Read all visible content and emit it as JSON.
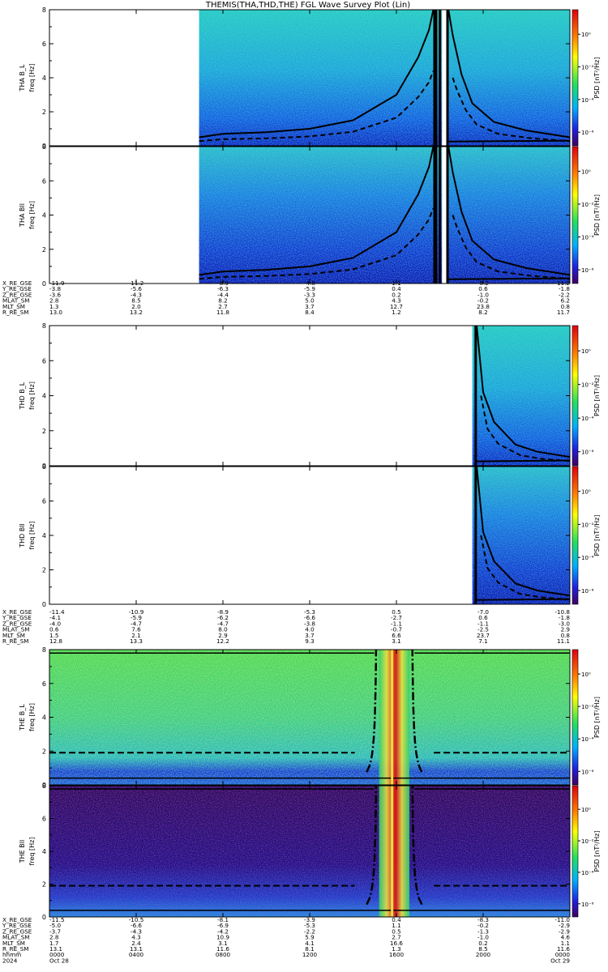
{
  "title": "THEMIS(THA,THD,THE) FGL Wave Survey Plot (Lin)",
  "chart_data": [
    {
      "type": "heatmap",
      "ylabel_probe": "THA B_L",
      "ylabel_unit": "freq [Hz]",
      "ylim": [
        0,
        8
      ],
      "yticks": [
        "0",
        "2",
        "4",
        "6",
        "8"
      ],
      "colorbar": {
        "label": "PSD [nT²/Hz]",
        "ticks": [
          "10⁰",
          "10⁻²",
          "10⁻⁴",
          "10⁻⁶"
        ]
      },
      "data_extent_hours": [
        [
          6.9,
          18.1
        ],
        [
          18.3,
          24
        ]
      ],
      "background": "ocean",
      "f_ci_curve": [
        [
          6.9,
          0.5
        ],
        [
          8,
          0.7
        ],
        [
          10,
          0.8
        ],
        [
          12,
          1.0
        ],
        [
          14,
          1.5
        ],
        [
          16,
          3.0
        ],
        [
          17,
          5.2
        ],
        [
          17.5,
          6.8
        ],
        [
          17.7,
          8
        ]
      ],
      "f_cutoff": [
        [
          18.4,
          8
        ],
        [
          18.6,
          6.5
        ],
        [
          19,
          4.2
        ],
        [
          19.5,
          2.5
        ],
        [
          20.5,
          1.4
        ],
        [
          22,
          0.9
        ],
        [
          24,
          0.5
        ]
      ]
    },
    {
      "type": "heatmap",
      "ylabel_probe": "THA Bll",
      "ylabel_unit": "freq [Hz]",
      "ylim": [
        0,
        8
      ],
      "yticks": [
        "0",
        "2",
        "4",
        "6",
        "8"
      ],
      "colorbar": {
        "label": "PSD [nT²/Hz]",
        "ticks": [
          "10⁰",
          "10⁻²",
          "10⁻⁴",
          "10⁻⁶"
        ]
      },
      "data_extent_hours": [
        [
          6.9,
          18.1
        ],
        [
          18.3,
          24
        ]
      ],
      "background": "deep",
      "f_ci_curve": [
        [
          6.9,
          0.5
        ],
        [
          8,
          0.7
        ],
        [
          10,
          0.8
        ],
        [
          12,
          1.0
        ],
        [
          14,
          1.5
        ],
        [
          16,
          3.0
        ],
        [
          17,
          5.2
        ],
        [
          17.5,
          6.8
        ],
        [
          17.7,
          8
        ]
      ],
      "f_cutoff": [
        [
          18.4,
          8
        ],
        [
          18.6,
          6.5
        ],
        [
          19,
          4.2
        ],
        [
          19.5,
          2.5
        ],
        [
          20.5,
          1.4
        ],
        [
          22,
          0.9
        ],
        [
          24,
          0.5
        ]
      ]
    },
    {
      "type": "heatmap",
      "ylabel_probe": "THD B_L",
      "ylabel_unit": "freq [Hz]",
      "ylim": [
        0,
        8
      ],
      "yticks": [
        "0",
        "2",
        "4",
        "6",
        "8"
      ],
      "colorbar": {
        "label": "PSD [nT²/Hz]",
        "ticks": [
          "10⁰",
          "10⁻²",
          "10⁻⁴",
          "10⁻⁶"
        ]
      },
      "data_extent_hours": [
        [
          19.5,
          24
        ]
      ],
      "background": "ocean",
      "f_cutoff": [
        [
          19.7,
          8
        ],
        [
          20,
          4.2
        ],
        [
          20.5,
          2.5
        ],
        [
          21.5,
          1.2
        ],
        [
          22.5,
          0.8
        ],
        [
          24,
          0.5
        ]
      ]
    },
    {
      "type": "heatmap",
      "ylabel_probe": "THD Bll",
      "ylabel_unit": "freq [Hz]",
      "ylim": [
        0,
        8
      ],
      "yticks": [
        "0",
        "2",
        "4",
        "6",
        "8"
      ],
      "colorbar": {
        "label": "PSD [nT²/Hz]",
        "ticks": [
          "10⁰",
          "10⁻²",
          "10⁻⁴",
          "10⁻⁶"
        ]
      },
      "data_extent_hours": [
        [
          19.5,
          24
        ]
      ],
      "background": "deep",
      "f_cutoff": [
        [
          19.7,
          8
        ],
        [
          20,
          4.2
        ],
        [
          20.5,
          2.5
        ],
        [
          21.5,
          1.2
        ],
        [
          22.5,
          0.8
        ],
        [
          24,
          0.5
        ]
      ]
    },
    {
      "type": "heatmap",
      "ylabel_probe": "THE B_L",
      "ylabel_unit": "freq [Hz]",
      "ylim": [
        0,
        8
      ],
      "yticks": [
        "0",
        "2",
        "4",
        "6",
        "8"
      ],
      "colorbar": {
        "label": "PSD [nT²/Hz]",
        "ticks": [
          "10⁰",
          "10⁻²",
          "10⁻⁴",
          "10⁻⁶"
        ]
      },
      "data_extent_hours": [
        [
          0,
          24
        ]
      ],
      "background": "green",
      "hot_band_hours": [
        15.2,
        16.6
      ],
      "f_top": 7.8,
      "f_dash": 1.9,
      "f_low": 0.4
    },
    {
      "type": "heatmap",
      "ylabel_probe": "THE Bll",
      "ylabel_unit": "freq [Hz]",
      "ylim": [
        0,
        8
      ],
      "yticks": [
        "0",
        "2",
        "4",
        "6",
        "8"
      ],
      "colorbar": {
        "label": "PSD [nT²/Hz]",
        "ticks": [
          "10⁰",
          "10⁻²",
          "10⁻⁴",
          "10⁻⁶"
        ]
      },
      "data_extent_hours": [
        [
          0,
          24
        ]
      ],
      "background": "dark",
      "hot_band_hours": [
        15.2,
        16.6
      ],
      "f_top": 7.8,
      "f_dash": 1.9,
      "f_low": 0.4
    }
  ],
  "ephem_tables": [
    {
      "labels": [
        "X_RE_GSE",
        "Y_RE_GSE",
        "Z_RE_GSE",
        "MLAT_SM",
        "MLT_SM",
        "R_RE_SM"
      ],
      "cols": [
        [
          "-11.9",
          "-3.8",
          "-3.6",
          "2.8",
          "1.3",
          "13.0"
        ],
        [
          "-11.2",
          "-5.6",
          "-4.3",
          "8.5",
          "2.0",
          "13.2"
        ],
        [
          "-8.9",
          "-6.3",
          "-4.4",
          "8.2",
          "2.7",
          "11.8"
        ],
        [
          "-4.8",
          "-5.9",
          "-3.3",
          "5.0",
          "3.7",
          "8.4"
        ],
        [
          "1.1",
          "0.4",
          "0.2",
          "4.3",
          "12.7",
          "1.2"
        ],
        [
          "-8.2",
          "0.6",
          "-1.0",
          "-0.2",
          "23.8",
          "8.2"
        ],
        [
          "-11.2",
          "-1.8",
          "-2.2",
          "6.2",
          "0.8",
          "11.7"
        ]
      ]
    },
    {
      "labels": [
        "X_RE_GSE",
        "Y_RE_GSE",
        "Z_RE_GSE",
        "MLAT_SM",
        "MLT_SM",
        "R_RE_SM"
      ],
      "cols": [
        [
          "-11.4",
          "-4.1",
          "-4.0",
          "0.6",
          "1.5",
          "12.8"
        ],
        [
          "-10.9",
          "-5.9",
          "-4.7",
          "7.6",
          "2.1",
          "13.3"
        ],
        [
          "-8.9",
          "-6.2",
          "-4.7",
          "8.0",
          "2.9",
          "12.2"
        ],
        [
          "-5.3",
          "-6.6",
          "-3.8",
          "4.0",
          "3.7",
          "9.3"
        ],
        [
          "0.5",
          "-2.7",
          "-1.1",
          "-0.7",
          "6.6",
          "3.1"
        ],
        [
          "-7.0",
          "0.6",
          "-1.1",
          "-2.5",
          "23.7",
          "7.1"
        ],
        [
          "-10.8",
          "-1.8",
          "-3.0",
          "2.9",
          "0.8",
          "11.1"
        ]
      ]
    },
    {
      "labels": [
        "X_RE_GSE",
        "Y_RE_GSE",
        "Z_RE_GSE",
        "MLAT_SM",
        "MLT_SM",
        "R_RE_SM",
        "hhmm",
        "2024"
      ],
      "cols": [
        [
          "-11.5",
          "-5.0",
          "-3.7",
          "2.8",
          "1.7",
          "13.1",
          "0000",
          "Oct 28"
        ],
        [
          "-10.5",
          "-6.6",
          "-4.3",
          "4.3",
          "2.4",
          "13.1",
          "0400",
          ""
        ],
        [
          "-8.1",
          "-6.9",
          "-4.2",
          "10.9",
          "3.1",
          "11.6",
          "0800",
          ""
        ],
        [
          "-3.9",
          "-5.3",
          "-2.2",
          "5.9",
          "4.1",
          "8.1",
          "1200",
          ""
        ],
        [
          "0.4",
          "1.1",
          "0.5",
          "2.7",
          "16.6",
          "1.3",
          "1600",
          ""
        ],
        [
          "-8.3",
          "-0.2",
          "-1.3",
          "-1.0",
          "0.2",
          "8.5",
          "2000",
          ""
        ],
        [
          "-11.0",
          "-2.9",
          "-2.9",
          "4.6",
          "1.1",
          "11.6",
          "0000",
          "Oct 29"
        ]
      ]
    }
  ]
}
